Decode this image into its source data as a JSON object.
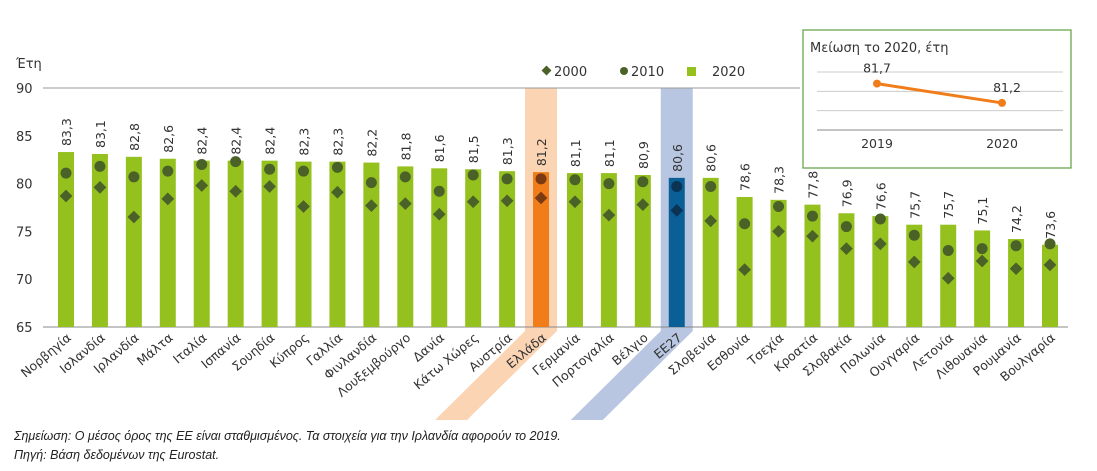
{
  "chart_data": [
    {
      "type": "bar",
      "ylabel": "Έτη",
      "ylim": [
        65,
        90
      ],
      "yticks": [
        65,
        70,
        75,
        80,
        85,
        90
      ],
      "legend": {
        "placement": "top",
        "entries": [
          "2000",
          "2010",
          "2020"
        ]
      },
      "categories": [
        "Νορβηγία",
        "Ισλανδία",
        "Ιρλανδία",
        "Μάλτα",
        "Ιταλία",
        "Ισπανία",
        "Σουηδία",
        "Κύπρος",
        "Γαλλία",
        "Φινλανδία",
        "Λουξεμβούργο",
        "Δανία",
        "Κάτω Χώρες",
        "Αυστρία",
        "Ελλάδα",
        "Γερμανία",
        "Πορτογαλία",
        "Βέλγιο",
        "ΕΕ27",
        "Σλοβενία",
        "Εσθονία",
        "Τσεχία",
        "Κροατία",
        "Σλοβακία",
        "Πολωνία",
        "Ουγγαρία",
        "Λετονία",
        "Λιθουανία",
        "Ρουμανία",
        "Βουλγαρία"
      ],
      "series": [
        {
          "name": "2020",
          "mark": "bar",
          "values": [
            83.3,
            83.1,
            82.8,
            82.6,
            82.4,
            82.4,
            82.4,
            82.3,
            82.3,
            82.2,
            81.8,
            81.6,
            81.5,
            81.3,
            81.2,
            81.1,
            81.1,
            80.9,
            80.6,
            80.6,
            78.6,
            78.3,
            77.8,
            76.9,
            76.6,
            75.7,
            75.7,
            75.1,
            74.2,
            73.6
          ],
          "labels": [
            "83,3",
            "83,1",
            "82,8",
            "82,6",
            "82,4",
            "82,4",
            "82,4",
            "82,3",
            "82,3",
            "82,2",
            "81,8",
            "81,6",
            "81,5",
            "81,3",
            "81,2",
            "81,1",
            "81,1",
            "80,9",
            "80,6",
            "80,6",
            "78,6",
            "78,3",
            "77,8",
            "76,9",
            "76,6",
            "75,7",
            "75,7",
            "75,1",
            "74,2",
            "73,6"
          ]
        },
        {
          "name": "2010",
          "mark": "circle",
          "values": [
            81.1,
            81.8,
            80.7,
            81.3,
            82.0,
            82.3,
            81.5,
            81.3,
            81.7,
            80.1,
            80.7,
            79.2,
            80.9,
            80.5,
            80.5,
            80.4,
            80.0,
            80.2,
            79.7,
            79.7,
            75.8,
            77.6,
            76.6,
            75.5,
            76.3,
            74.6,
            73.0,
            73.2,
            73.5,
            73.7
          ]
        },
        {
          "name": "2000",
          "mark": "diamond",
          "values": [
            78.7,
            79.6,
            76.5,
            78.4,
            79.8,
            79.2,
            79.7,
            77.6,
            79.1,
            77.7,
            77.9,
            76.8,
            78.1,
            78.2,
            78.5,
            78.1,
            76.7,
            77.8,
            77.2,
            76.1,
            71.0,
            75.0,
            74.5,
            73.2,
            73.7,
            71.8,
            70.1,
            71.9,
            71.1,
            71.5
          ]
        }
      ],
      "highlights": {
        "Ελλάδα": "#f07d1a",
        "ΕΕ27": "#0b5f97"
      },
      "colors": {
        "bar": "#95c11f",
        "marker": "#4a6127",
        "greece_band": "#fbd4b4",
        "eu_band": "#b8c6e1"
      }
    },
    {
      "type": "line",
      "title": "Μείωση το 2020, έτη",
      "categories": [
        "2019",
        "2020"
      ],
      "values": [
        81.7,
        81.2
      ],
      "labels": [
        "81,7",
        "81,2"
      ],
      "ylim": [
        80.5,
        82.0
      ],
      "color": "#f07d1a"
    }
  ],
  "notes": {
    "note": "Σημείωση: Ο μέσος όρος της ΕΕ είναι σταθμισμένος. Τα στοιχεία για την Ιρλανδία αφορούν το 2019.",
    "source": "Πηγή: Βάση δεδομένων της Eurostat."
  }
}
